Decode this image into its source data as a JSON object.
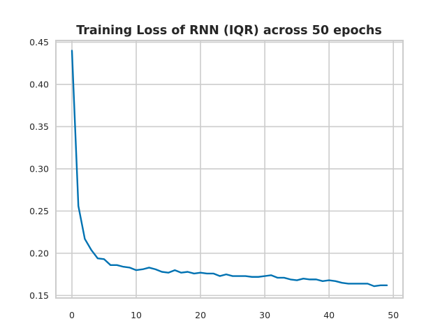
{
  "chart_data": {
    "type": "line",
    "title": "Training Loss of RNN (IQR) across 50 epochs",
    "xlabel": "",
    "ylabel": "",
    "xlim": [
      -2.5,
      51.5
    ],
    "ylim": [
      0.147,
      0.452
    ],
    "xticks": [
      0,
      10,
      20,
      30,
      40,
      50
    ],
    "xtick_labels": [
      "0",
      "10",
      "20",
      "30",
      "40",
      "50"
    ],
    "yticks": [
      0.15,
      0.2,
      0.25,
      0.3,
      0.35,
      0.4,
      0.45
    ],
    "ytick_labels": [
      "0.15",
      "0.20",
      "0.25",
      "0.30",
      "0.35",
      "0.40",
      "0.45"
    ],
    "grid": true,
    "legend": "none",
    "series": [
      {
        "color": "#0072b2",
        "x": [
          0,
          1,
          2,
          3,
          4,
          5,
          6,
          7,
          8,
          9,
          10,
          11,
          12,
          13,
          14,
          15,
          16,
          17,
          18,
          19,
          20,
          21,
          22,
          23,
          24,
          25,
          26,
          27,
          28,
          29,
          30,
          31,
          32,
          33,
          34,
          35,
          36,
          37,
          38,
          39,
          40,
          41,
          42,
          43,
          44,
          45,
          46,
          47,
          48,
          49
        ],
        "values": [
          0.44,
          0.256,
          0.217,
          0.204,
          0.194,
          0.193,
          0.186,
          0.186,
          0.184,
          0.183,
          0.18,
          0.181,
          0.183,
          0.181,
          0.178,
          0.177,
          0.18,
          0.177,
          0.178,
          0.176,
          0.177,
          0.176,
          0.176,
          0.173,
          0.175,
          0.173,
          0.173,
          0.173,
          0.172,
          0.172,
          0.173,
          0.174,
          0.171,
          0.171,
          0.169,
          0.168,
          0.17,
          0.169,
          0.169,
          0.167,
          0.168,
          0.167,
          0.165,
          0.164,
          0.164,
          0.164,
          0.164,
          0.161,
          0.162,
          0.162
        ]
      }
    ]
  }
}
